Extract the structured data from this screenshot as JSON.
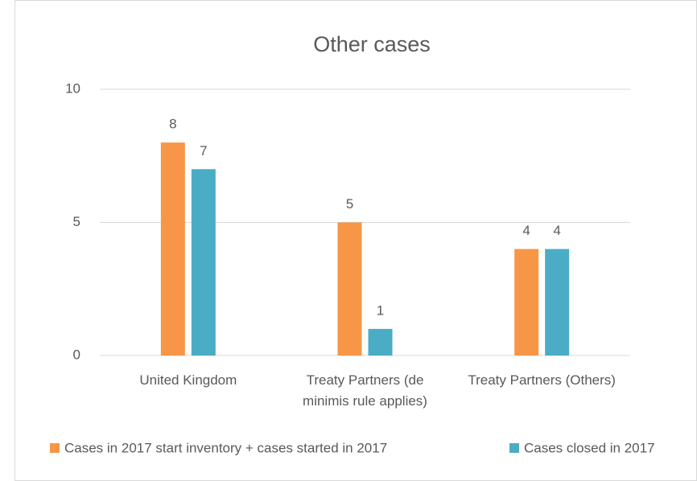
{
  "chart_data": {
    "type": "bar",
    "title": "Other cases",
    "categories": [
      "United Kingdom",
      "Treaty Partners (de minimis rule applies)",
      "Treaty Partners (Others)"
    ],
    "series": [
      {
        "name": "Cases in 2017 start inventory + cases started in 2017",
        "color": "#f79646",
        "values": [
          8,
          5,
          4
        ]
      },
      {
        "name": "Cases closed in 2017",
        "color": "#4bacc6",
        "values": [
          7,
          1,
          4
        ]
      }
    ],
    "ylim": [
      0,
      10
    ],
    "yticks": [
      0,
      5,
      10
    ],
    "grid": true,
    "legend": "bottom"
  }
}
